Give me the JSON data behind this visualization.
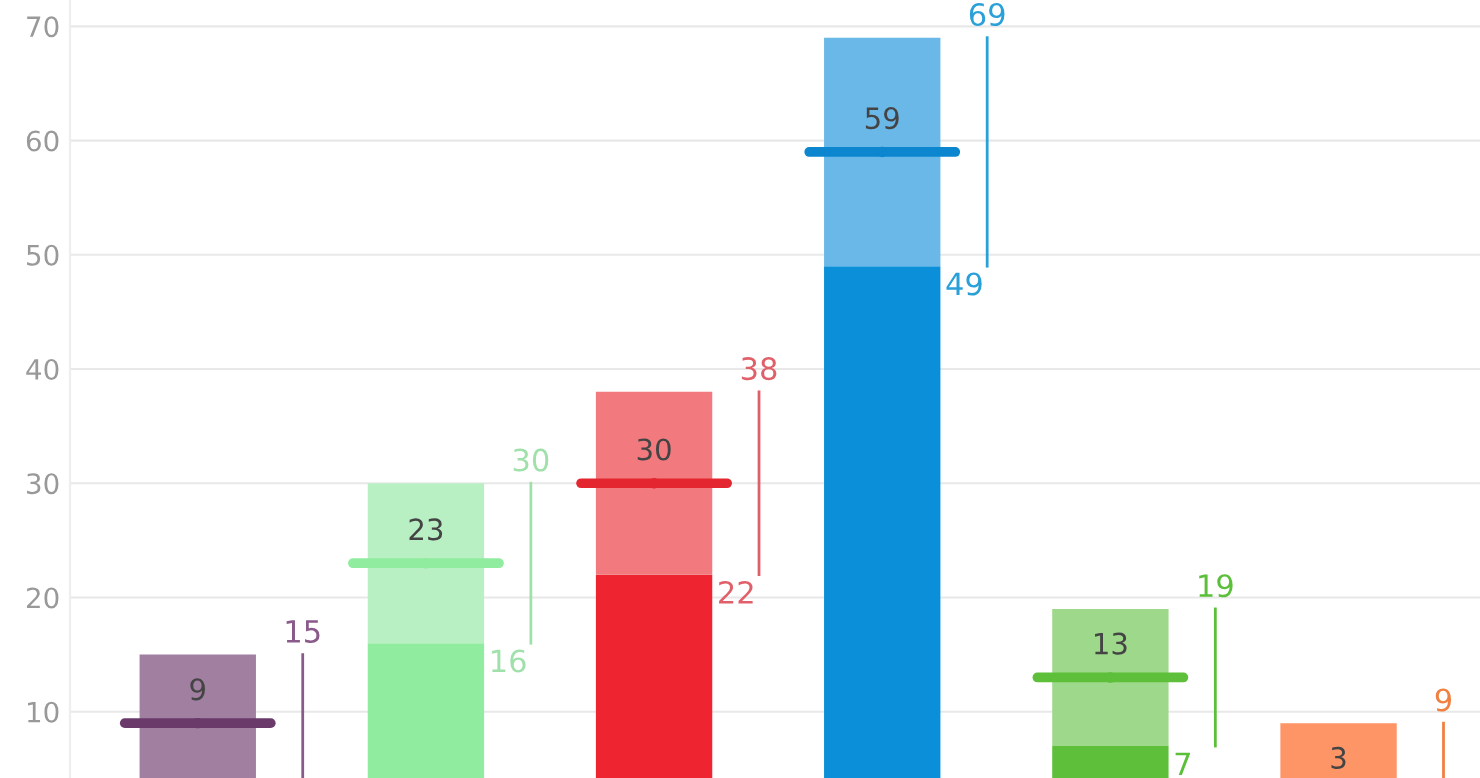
{
  "chart_data": {
    "type": "bar",
    "stacked": true,
    "categories": [
      null,
      null,
      null,
      null,
      null,
      null
    ],
    "series": [
      {
        "type": "bar",
        "colors": [
          "#a07fa0",
          "#90ec9f",
          "#ee2531",
          "#0a8fd8",
          "#5dbf3a",
          "#fd9566"
        ],
        "values": [
          null,
          16,
          22,
          49,
          7,
          null
        ],
        "value_labels": [
          null,
          "16",
          "22",
          "49",
          "7",
          null
        ]
      },
      {
        "type": "bar",
        "colors": [
          "#a07fa0",
          "#b8f0c4",
          "#f27a7e",
          "#6ab8e8",
          "#9ed88a",
          "#fd9566"
        ],
        "values": [
          15,
          14,
          16,
          20,
          12,
          9
        ]
      },
      {
        "type": "scatter",
        "colors": [
          "#6a3a6a",
          "#90ec9f",
          "#e42630",
          "#0b86cf",
          "#5dbf3a",
          "#fd9566"
        ],
        "values": [
          9,
          23,
          30,
          59,
          13,
          null
        ],
        "value_labels": [
          "9",
          "23",
          "30",
          "59",
          "13",
          null
        ]
      }
    ],
    "totals": [
      "15",
      "30",
      "38",
      "69",
      "19",
      "9"
    ],
    "annotations": [
      "3"
    ],
    "ylim": [
      4.2,
      72.3
    ],
    "yticks": [
      10,
      20,
      30,
      40,
      50,
      60,
      70
    ],
    "grid": "y"
  }
}
